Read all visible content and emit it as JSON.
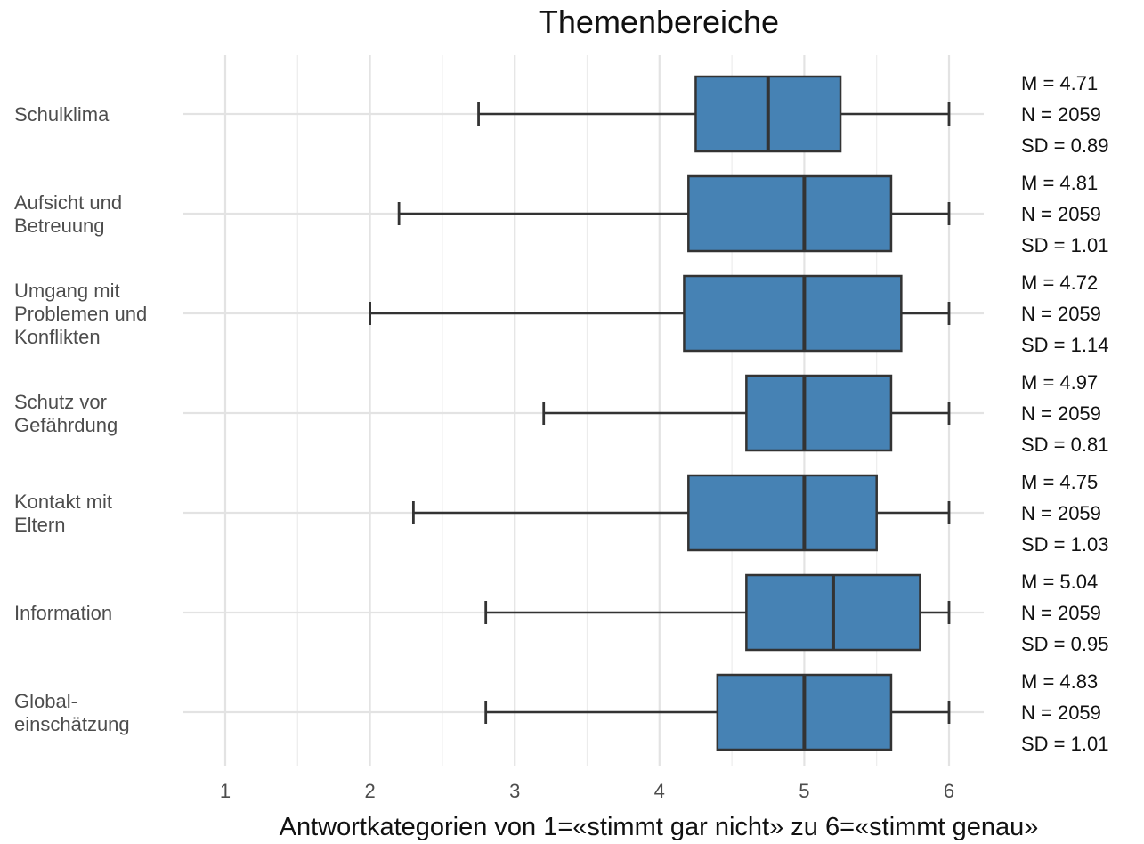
{
  "chart_data": {
    "type": "boxplot",
    "title": "Themenbereiche",
    "xlabel": "Antwortkategorien von 1=«stimmt gar nicht» zu 6=«stimmt genau»",
    "ylabel": "",
    "xlim": [
      0.85,
      6.4
    ],
    "xticks": [
      1,
      2,
      3,
      4,
      5,
      6
    ],
    "grid": true,
    "box_color": "#4682B4",
    "line_color": "#333333",
    "categories": [
      {
        "label": "Schulklima",
        "lines": [
          "Schulklima"
        ],
        "min": 2.75,
        "q1": 4.25,
        "median": 4.75,
        "q3": 5.25,
        "max": 6,
        "m": "M = 4.71",
        "n": "N = 2059",
        "sd": "SD = 0.89"
      },
      {
        "label": "Aufsicht und Betreuung",
        "lines": [
          "Aufsicht und",
          "Betreuung"
        ],
        "min": 2.2,
        "q1": 4.2,
        "median": 5.0,
        "q3": 5.6,
        "max": 6,
        "m": "M = 4.81",
        "n": "N = 2059",
        "sd": "SD = 1.01"
      },
      {
        "label": "Umgang mit Problemen und Konflikten",
        "lines": [
          "Umgang mit",
          "Problemen und",
          "Konflikten"
        ],
        "min": 2.0,
        "q1": 4.17,
        "median": 5.0,
        "q3": 5.67,
        "max": 6,
        "m": "M = 4.72",
        "n": "N = 2059",
        "sd": "SD = 1.14"
      },
      {
        "label": "Schutz vor Gefährdung",
        "lines": [
          "Schutz vor",
          "Gefährdung"
        ],
        "min": 3.2,
        "q1": 4.6,
        "median": 5.0,
        "q3": 5.6,
        "max": 6,
        "m": "M = 4.97",
        "n": "N = 2059",
        "sd": "SD = 0.81"
      },
      {
        "label": "Kontakt mit Eltern",
        "lines": [
          "Kontakt mit",
          "Eltern"
        ],
        "min": 2.3,
        "q1": 4.2,
        "median": 5.0,
        "q3": 5.5,
        "max": 6,
        "m": "M = 4.75",
        "n": "N = 2059",
        "sd": "SD = 1.03"
      },
      {
        "label": "Information",
        "lines": [
          "Information"
        ],
        "min": 2.8,
        "q1": 4.6,
        "median": 5.2,
        "q3": 5.8,
        "max": 6,
        "m": "M = 5.04",
        "n": "N = 2059",
        "sd": "SD = 0.95"
      },
      {
        "label": "Global-einschätzung",
        "lines": [
          "Global-",
          "einschätzung"
        ],
        "min": 2.8,
        "q1": 4.4,
        "median": 5.0,
        "q3": 5.6,
        "max": 6,
        "m": "M = 4.83",
        "n": "N = 2059",
        "sd": "SD = 1.01"
      }
    ]
  }
}
